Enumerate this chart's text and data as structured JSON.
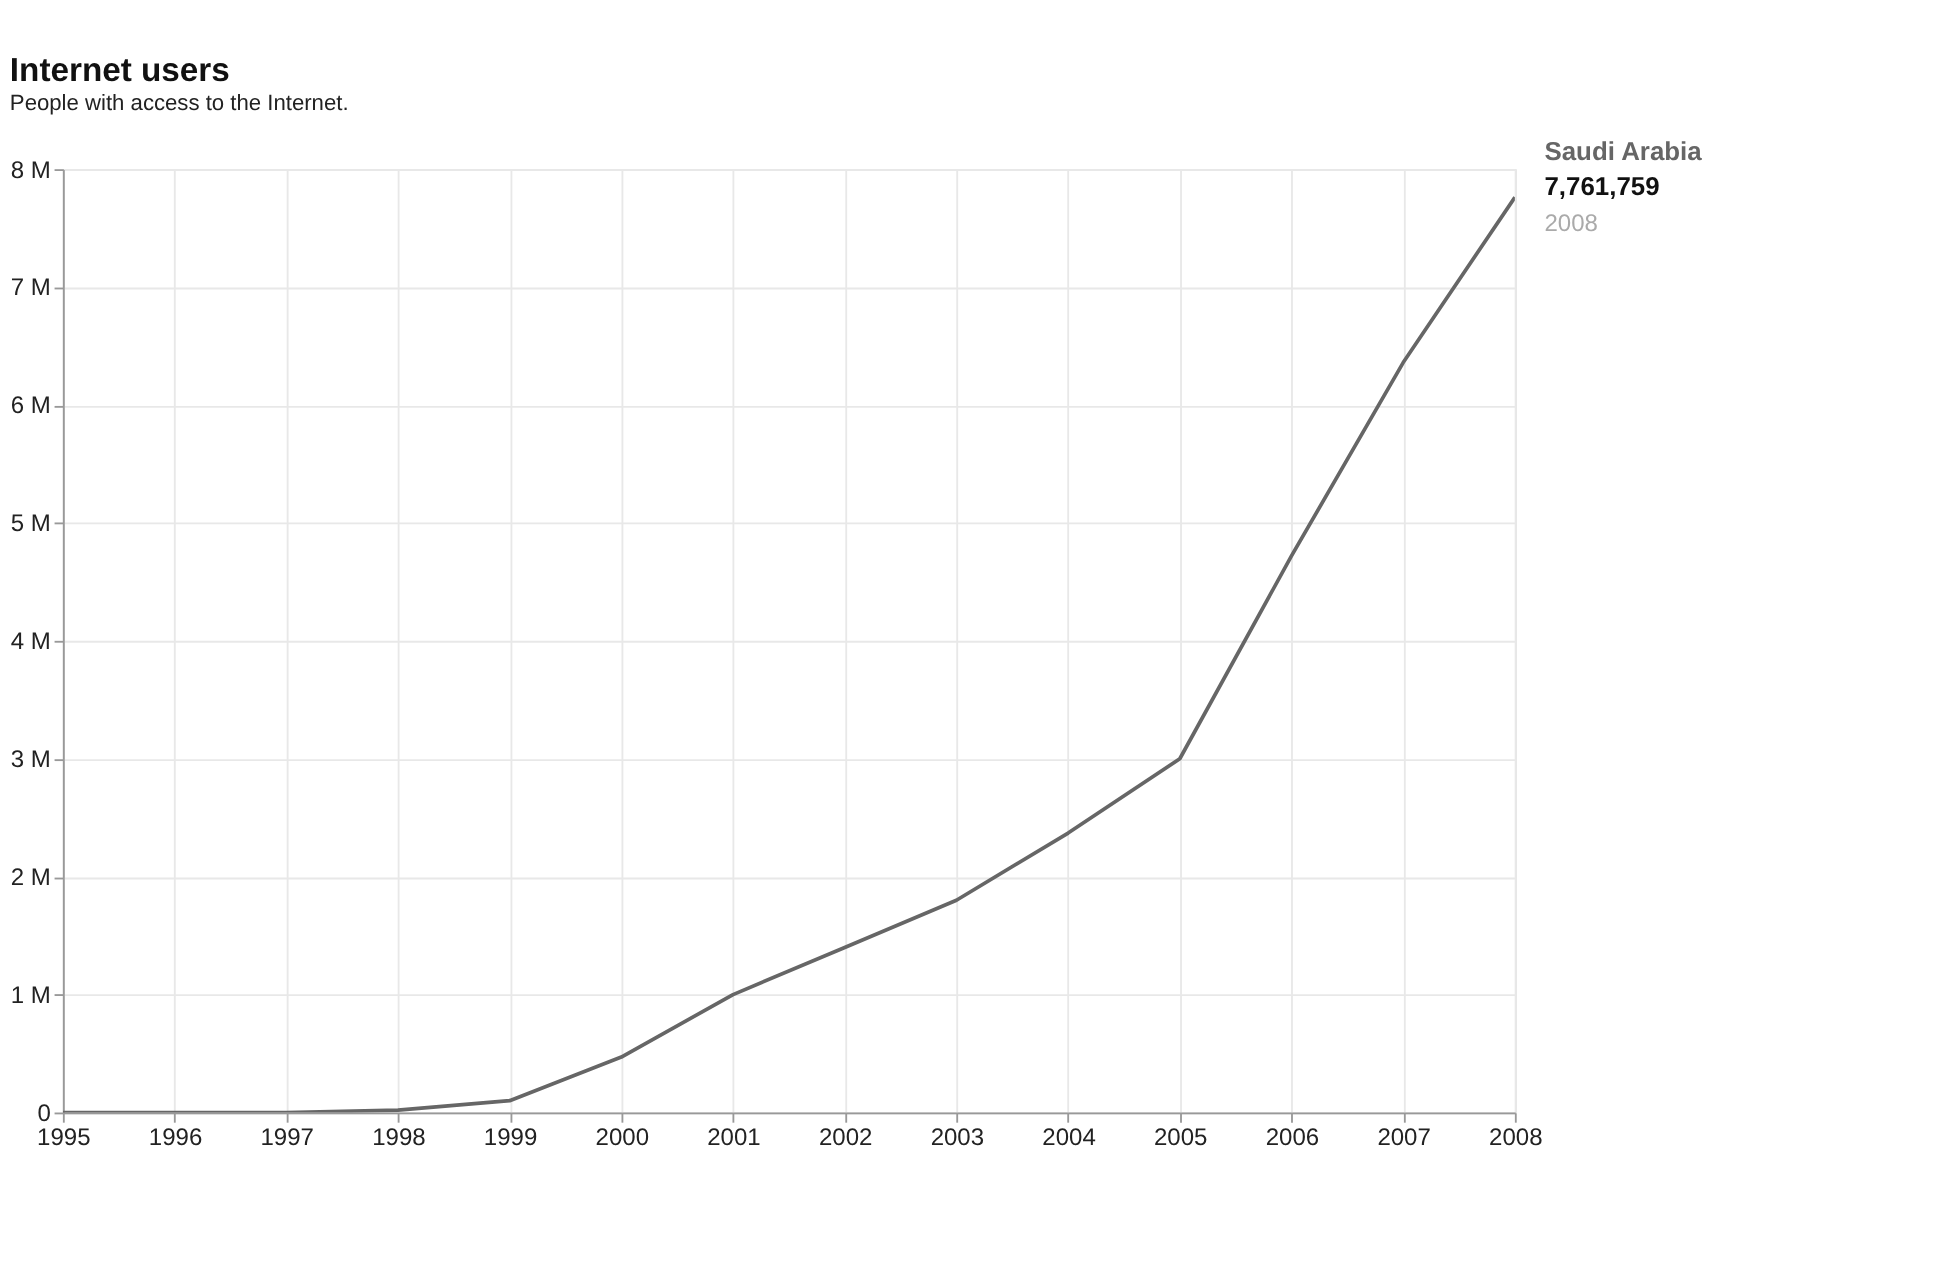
{
  "chart_data": {
    "type": "line",
    "title": "Internet users",
    "subtitle": "People with access to the Internet.",
    "x": [
      1995,
      1996,
      1997,
      1998,
      1999,
      2000,
      2001,
      2002,
      2003,
      2004,
      2005,
      2006,
      2007,
      2008
    ],
    "series": [
      {
        "name": "Saudi Arabia",
        "color": "#666666",
        "values": [
          0,
          0,
          0,
          20000,
          100000,
          470000,
          1000000,
          1400000,
          1800000,
          2370000,
          3000000,
          4720000,
          6360000,
          7761759
        ],
        "value_labels": [
          null,
          null,
          null,
          null,
          null,
          null,
          null,
          null,
          null,
          null,
          null,
          null,
          null,
          "7,761,759"
        ]
      }
    ],
    "annotations": [
      {
        "text": "2008",
        "x": 2008,
        "y": 7761759
      }
    ],
    "xlim": [
      1995,
      2008
    ],
    "xticks": [
      1995,
      1996,
      1997,
      1998,
      1999,
      2000,
      2001,
      2002,
      2003,
      2004,
      2005,
      2006,
      2007,
      2008
    ],
    "ylim": [
      0,
      8000000
    ],
    "yticks": [
      0,
      {
        "value": 1000000,
        "label": "1 M"
      },
      {
        "value": 2000000,
        "label": "2 M"
      },
      {
        "value": 3000000,
        "label": "3 M"
      },
      {
        "value": 4000000,
        "label": "4 M"
      },
      {
        "value": 5000000,
        "label": "5 M"
      },
      {
        "value": 6000000,
        "label": "6 M"
      },
      {
        "value": 7000000,
        "label": "7 M"
      },
      {
        "value": 8000000,
        "label": "8 M"
      }
    ],
    "grid": true,
    "marker": "none",
    "line_style": "solid"
  }
}
